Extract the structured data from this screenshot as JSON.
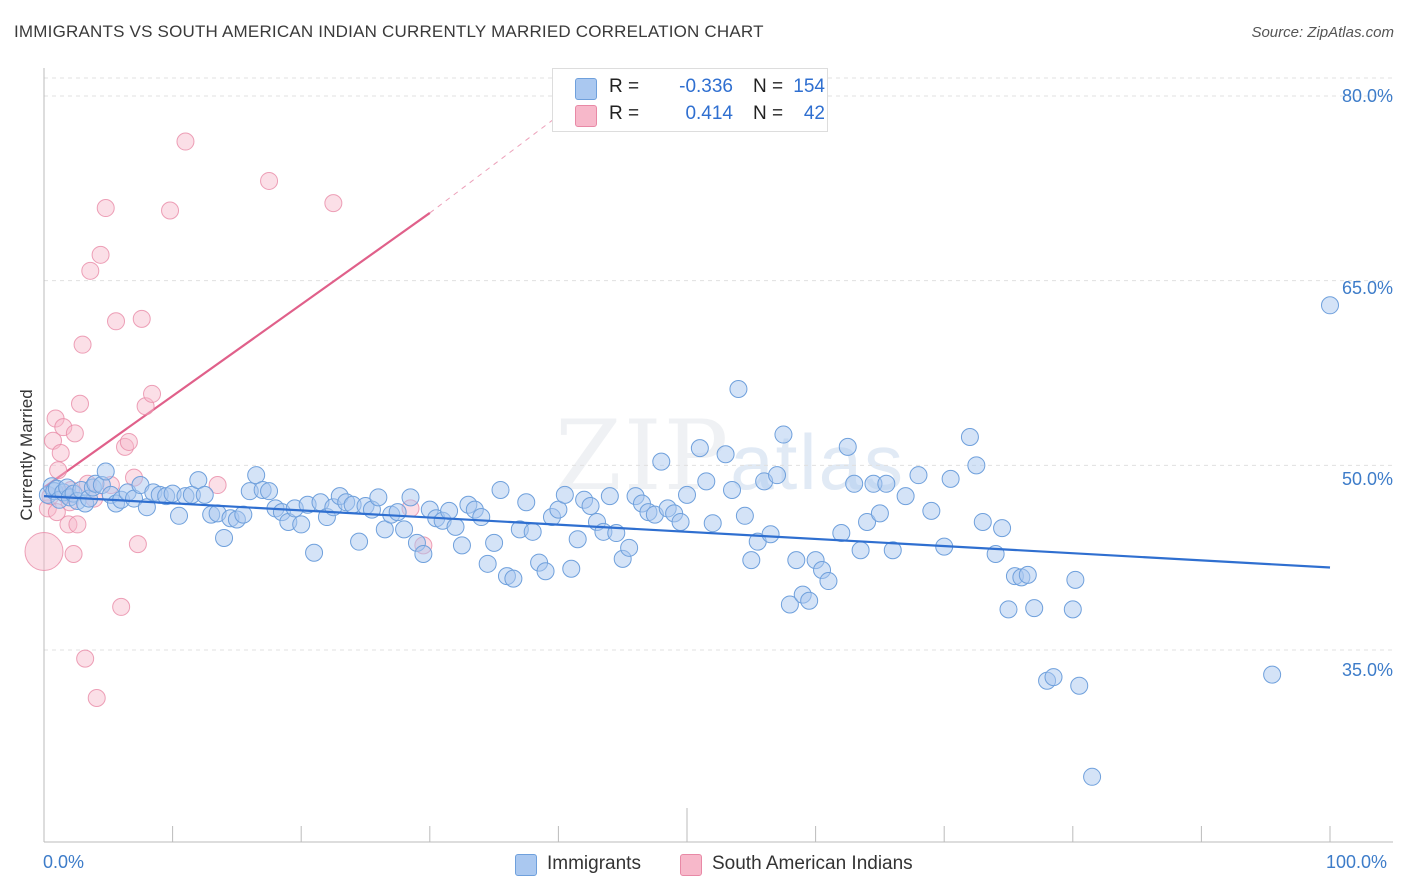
{
  "header": {
    "title": "IMMIGRANTS VS SOUTH AMERICAN INDIAN CURRENTLY MARRIED CORRELATION CHART",
    "source": "Source: ZipAtlas.com"
  },
  "watermark": {
    "zip": "ZIP",
    "atlas": "atlas"
  },
  "legend": {
    "rows": [
      {
        "r_label": "R =",
        "r_value": "-0.336",
        "n_label": "N =",
        "n_value": "154",
        "color": "#aac8f0"
      },
      {
        "r_label": "R =",
        "r_value": "0.414",
        "n_label": "N =",
        "n_value": "42",
        "color": "#f7b8ca"
      }
    ]
  },
  "colors": {
    "blue_fill": "#aac8f0",
    "blue_stroke": "#6fa0dc",
    "blue_line": "#2f6fd0",
    "pink_fill": "#f7b8ca",
    "pink_stroke": "#e889a6",
    "pink_line": "#e0608a",
    "tick_text": "#3d7cc9",
    "grid": "#e0e0e0"
  },
  "chart_data": {
    "type": "scatter",
    "title": "IMMIGRANTS VS SOUTH AMERICAN INDIAN CURRENTLY MARRIED CORRELATION CHART",
    "xlabel": "",
    "ylabel": "Currently Married",
    "xlim": [
      0,
      100
    ],
    "ylim": [
      20,
      83
    ],
    "x_tick_labels": [
      "0.0%",
      "100.0%"
    ],
    "y_ticks": [
      35,
      50,
      65,
      80
    ],
    "y_tick_labels": [
      "35.0%",
      "50.0%",
      "65.0%",
      "80.0%"
    ],
    "grid": true,
    "legend_position": "bottom-center",
    "series": [
      {
        "name": "Immigrants",
        "color": "#aac8f0",
        "trend": {
          "x": [
            0,
            100
          ],
          "y": [
            47.5,
            41.7
          ]
        },
        "points": [
          [
            0.3,
            47.6
          ],
          [
            0.6,
            48.3
          ],
          [
            0.8,
            47.9
          ],
          [
            1.0,
            48.1
          ],
          [
            1.2,
            47.2
          ],
          [
            1.5,
            47.8
          ],
          [
            1.8,
            48.2
          ],
          [
            2.0,
            47.4
          ],
          [
            2.3,
            47.7
          ],
          [
            2.6,
            47.1
          ],
          [
            2.9,
            48.0
          ],
          [
            3.2,
            46.9
          ],
          [
            3.5,
            47.3
          ],
          [
            3.8,
            48.2
          ],
          [
            4.0,
            48.5
          ],
          [
            4.5,
            48.4
          ],
          [
            4.8,
            49.5
          ],
          [
            5.2,
            47.6
          ],
          [
            5.6,
            46.9
          ],
          [
            6.0,
            47.2
          ],
          [
            6.5,
            47.8
          ],
          [
            7.0,
            47.3
          ],
          [
            7.5,
            48.4
          ],
          [
            8.0,
            46.6
          ],
          [
            8.5,
            47.8
          ],
          [
            9.0,
            47.6
          ],
          [
            9.5,
            47.5
          ],
          [
            10.0,
            47.7
          ],
          [
            10.5,
            45.9
          ],
          [
            11.0,
            47.5
          ],
          [
            11.5,
            47.6
          ],
          [
            12.0,
            48.8
          ],
          [
            12.5,
            47.6
          ],
          [
            13.0,
            46.0
          ],
          [
            13.5,
            46.1
          ],
          [
            14.0,
            44.1
          ],
          [
            14.5,
            45.7
          ],
          [
            15.0,
            45.6
          ],
          [
            15.5,
            46.0
          ],
          [
            16.0,
            47.9
          ],
          [
            16.5,
            49.2
          ],
          [
            17.0,
            48.0
          ],
          [
            17.5,
            47.9
          ],
          [
            18.0,
            46.5
          ],
          [
            18.5,
            46.2
          ],
          [
            19.0,
            45.4
          ],
          [
            19.5,
            46.5
          ],
          [
            20.0,
            45.2
          ],
          [
            20.5,
            46.8
          ],
          [
            21.0,
            42.9
          ],
          [
            21.5,
            47.0
          ],
          [
            22.0,
            45.8
          ],
          [
            22.5,
            46.6
          ],
          [
            23.0,
            47.5
          ],
          [
            23.5,
            47.0
          ],
          [
            24.0,
            46.8
          ],
          [
            24.5,
            43.8
          ],
          [
            25.0,
            46.7
          ],
          [
            25.5,
            46.4
          ],
          [
            26.0,
            47.4
          ],
          [
            26.5,
            44.8
          ],
          [
            27.0,
            46.0
          ],
          [
            27.5,
            46.2
          ],
          [
            28.0,
            44.8
          ],
          [
            28.5,
            47.4
          ],
          [
            29.0,
            43.7
          ],
          [
            29.5,
            42.8
          ],
          [
            30.0,
            46.4
          ],
          [
            30.5,
            45.7
          ],
          [
            31.0,
            45.5
          ],
          [
            31.5,
            46.3
          ],
          [
            32.0,
            45.0
          ],
          [
            32.5,
            43.5
          ],
          [
            33.0,
            46.8
          ],
          [
            33.5,
            46.4
          ],
          [
            34.0,
            45.8
          ],
          [
            34.5,
            42.0
          ],
          [
            35.0,
            43.7
          ],
          [
            35.5,
            48.0
          ],
          [
            36.0,
            41.0
          ],
          [
            36.5,
            40.8
          ],
          [
            37.0,
            44.8
          ],
          [
            37.5,
            47.0
          ],
          [
            38.0,
            44.6
          ],
          [
            38.5,
            42.1
          ],
          [
            39.0,
            41.4
          ],
          [
            39.5,
            45.8
          ],
          [
            40.0,
            46.4
          ],
          [
            40.5,
            47.6
          ],
          [
            41.0,
            41.6
          ],
          [
            41.5,
            44.0
          ],
          [
            42.0,
            47.2
          ],
          [
            42.5,
            46.7
          ],
          [
            43.0,
            45.4
          ],
          [
            43.5,
            44.6
          ],
          [
            44.0,
            47.5
          ],
          [
            44.5,
            44.5
          ],
          [
            45.0,
            42.4
          ],
          [
            45.5,
            43.3
          ],
          [
            46.0,
            47.5
          ],
          [
            46.5,
            46.9
          ],
          [
            47.0,
            46.2
          ],
          [
            47.5,
            46.0
          ],
          [
            48.0,
            50.3
          ],
          [
            48.5,
            46.5
          ],
          [
            49.0,
            46.1
          ],
          [
            49.5,
            45.4
          ],
          [
            50.0,
            47.6
          ],
          [
            51.0,
            51.4
          ],
          [
            51.5,
            48.7
          ],
          [
            52.0,
            45.3
          ],
          [
            53.0,
            50.9
          ],
          [
            53.5,
            48.0
          ],
          [
            54.0,
            56.2
          ],
          [
            54.5,
            45.9
          ],
          [
            55.0,
            42.3
          ],
          [
            55.5,
            43.8
          ],
          [
            56.0,
            48.7
          ],
          [
            56.5,
            44.4
          ],
          [
            57.0,
            49.2
          ],
          [
            57.5,
            52.5
          ],
          [
            58.0,
            38.7
          ],
          [
            58.5,
            42.3
          ],
          [
            59.0,
            39.5
          ],
          [
            59.5,
            39.0
          ],
          [
            60.0,
            42.3
          ],
          [
            60.5,
            41.5
          ],
          [
            61.0,
            40.6
          ],
          [
            62.0,
            44.5
          ],
          [
            62.5,
            51.5
          ],
          [
            63.0,
            48.5
          ],
          [
            63.5,
            43.1
          ],
          [
            64.0,
            45.4
          ],
          [
            64.5,
            48.5
          ],
          [
            65.0,
            46.1
          ],
          [
            65.5,
            48.5
          ],
          [
            66.0,
            43.1
          ],
          [
            67.0,
            47.5
          ],
          [
            68.0,
            49.2
          ],
          [
            69.0,
            46.3
          ],
          [
            70.0,
            43.4
          ],
          [
            70.5,
            48.9
          ],
          [
            72.0,
            52.3
          ],
          [
            72.5,
            50.0
          ],
          [
            73.0,
            45.4
          ],
          [
            74.0,
            42.8
          ],
          [
            74.5,
            44.9
          ],
          [
            75.0,
            38.3
          ],
          [
            75.5,
            41.0
          ],
          [
            76.0,
            40.9
          ],
          [
            76.5,
            41.1
          ],
          [
            77.0,
            38.4
          ],
          [
            78.0,
            32.5
          ],
          [
            78.5,
            32.8
          ],
          [
            80.0,
            38.3
          ],
          [
            80.5,
            32.1
          ],
          [
            95.5,
            33.0
          ],
          [
            100.0,
            63.0
          ],
          [
            81.5,
            24.7
          ],
          [
            80.2,
            40.7
          ]
        ]
      },
      {
        "name": "South American Indians",
        "color": "#f7b8ca",
        "trend": {
          "x": [
            0,
            30
          ],
          "y": [
            48.2,
            70.5
          ]
        },
        "trend_dashed": {
          "x": [
            30,
            40
          ],
          "y": [
            70.5,
            78.4
          ]
        },
        "points": [
          [
            0.0,
            43.0
          ],
          [
            0.3,
            46.5
          ],
          [
            0.5,
            47.5
          ],
          [
            0.7,
            52.0
          ],
          [
            0.9,
            53.8
          ],
          [
            1.1,
            49.6
          ],
          [
            1.3,
            51.0
          ],
          [
            1.5,
            53.1
          ],
          [
            1.7,
            47.6
          ],
          [
            1.9,
            45.2
          ],
          [
            2.1,
            48.0
          ],
          [
            2.3,
            42.8
          ],
          [
            2.4,
            52.6
          ],
          [
            2.6,
            45.2
          ],
          [
            2.8,
            55.0
          ],
          [
            3.0,
            59.8
          ],
          [
            3.2,
            34.3
          ],
          [
            3.4,
            48.5
          ],
          [
            3.6,
            65.8
          ],
          [
            3.9,
            47.3
          ],
          [
            4.1,
            31.1
          ],
          [
            4.4,
            67.1
          ],
          [
            4.8,
            70.9
          ],
          [
            5.2,
            48.4
          ],
          [
            5.6,
            61.7
          ],
          [
            6.0,
            38.5
          ],
          [
            6.3,
            51.5
          ],
          [
            6.6,
            51.9
          ],
          [
            7.0,
            49.0
          ],
          [
            7.3,
            43.6
          ],
          [
            7.6,
            61.9
          ],
          [
            7.9,
            54.8
          ],
          [
            8.4,
            55.8
          ],
          [
            9.8,
            70.7
          ],
          [
            11.0,
            76.3
          ],
          [
            13.5,
            48.4
          ],
          [
            17.5,
            73.1
          ],
          [
            22.5,
            71.3
          ],
          [
            28.5,
            46.5
          ],
          [
            29.5,
            43.5
          ],
          [
            1.0,
            46.2
          ],
          [
            2.0,
            47.0
          ]
        ]
      }
    ]
  }
}
